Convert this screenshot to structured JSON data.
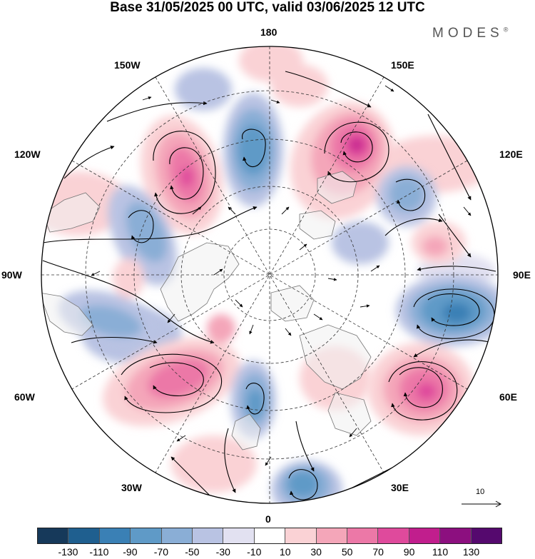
{
  "title": "Base 31/05/2025 00 UTC, valid 03/06/2025 12 UTC",
  "brand": "MODES",
  "brand_mark": "®",
  "longitude_labels": {
    "top": "180",
    "bottom": "0",
    "left": "90W",
    "right": "90E",
    "upper_left": "150W",
    "upper_right": "150E",
    "mid_upper_left": "120W",
    "mid_upper_right": "120E",
    "mid_lower_left": "60W",
    "mid_lower_right": "60E",
    "lower_left": "30W",
    "lower_right": "30E"
  },
  "reference_vector_label": "10",
  "colorbar": {
    "tick_labels": [
      "-130",
      "-110",
      "-90",
      "-70",
      "-50",
      "-30",
      "-10",
      "10",
      "30",
      "50",
      "70",
      "90",
      "110",
      "130"
    ],
    "colors": [
      "#16395a",
      "#1f5f8f",
      "#3a80b5",
      "#5f9ac7",
      "#8aaed6",
      "#b9c3e3",
      "#e2e1f1",
      "#ffffff",
      "#fad2d5",
      "#f4a6b9",
      "#ec78a7",
      "#df4a9c",
      "#c11e8d",
      "#8c0f7f",
      "#55096e"
    ]
  },
  "map_colors": {
    "land": "#f0f0f0",
    "coast": "#777777"
  }
}
